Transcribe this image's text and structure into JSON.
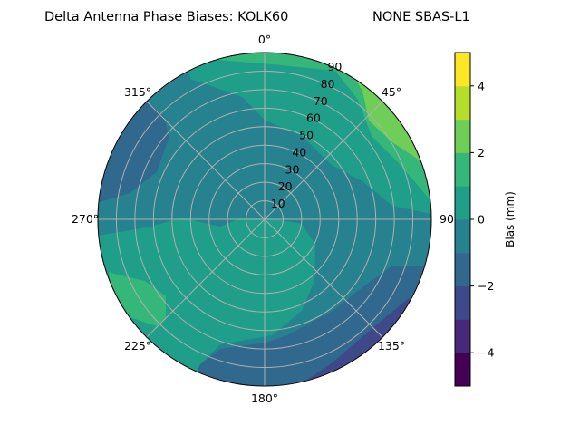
{
  "chart_data": {
    "type": "polar-contour",
    "title": "Delta Antenna Phase Biases: KOLK60",
    "subtitle": "NONE SBAS-L1",
    "angular_ticks": [
      "0°",
      "45°",
      "90",
      "135°",
      "180°",
      "225°",
      "270°",
      "315°"
    ],
    "radial_ticks": [
      "10",
      "20",
      "30",
      "40",
      "50",
      "60",
      "70",
      "80",
      "90"
    ],
    "radial_range": [
      0,
      90
    ],
    "grid": true,
    "colorbar": {
      "label": "Bias (mm)",
      "levels": [
        -5,
        -4,
        -3,
        -2,
        -1,
        0,
        1,
        2,
        3,
        4,
        5
      ],
      "ticks": [
        "−4",
        "−2",
        "0",
        "2",
        "4"
      ],
      "tick_values": [
        -4,
        -2,
        0,
        2,
        4
      ],
      "colormap": "viridis",
      "colors": [
        "#440154",
        "#482878",
        "#3e4989",
        "#31688e",
        "#26828e",
        "#1f9e89",
        "#35b779",
        "#6ece58",
        "#b5de2b",
        "#fde725"
      ]
    },
    "regions": [
      {
        "name": "background",
        "band": [
          -1,
          0
        ]
      },
      {
        "name": "south-west",
        "band": [
          0,
          1
        ]
      },
      {
        "name": "north-east",
        "band": [
          0,
          1
        ]
      },
      {
        "name": "north-rim",
        "band": [
          1,
          2
        ]
      },
      {
        "name": "north-east-rim",
        "band": [
          2,
          3
        ]
      },
      {
        "name": "west-south-west-blob",
        "band": [
          1,
          2
        ]
      },
      {
        "name": "north-west-blob",
        "band": [
          -2,
          -1
        ]
      },
      {
        "name": "south-east",
        "band": [
          -2,
          -1
        ]
      },
      {
        "name": "south-east-rim",
        "band": [
          -3,
          -2
        ]
      }
    ]
  }
}
